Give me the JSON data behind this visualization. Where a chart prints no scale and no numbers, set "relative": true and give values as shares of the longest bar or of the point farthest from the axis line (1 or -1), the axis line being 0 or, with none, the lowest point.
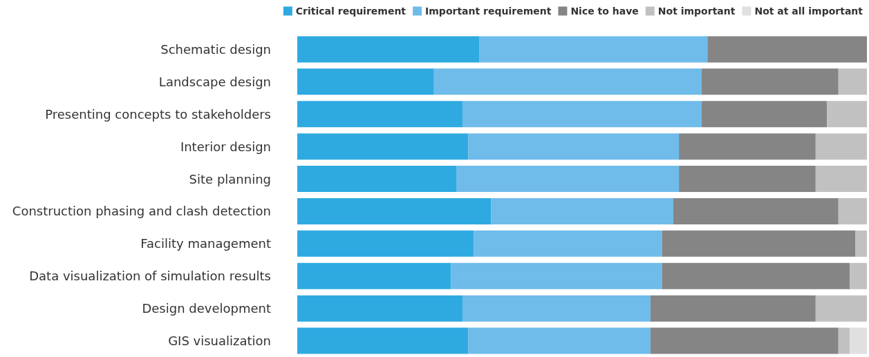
{
  "chart_data": {
    "type": "bar",
    "orientation": "horizontal",
    "stacked": true,
    "relative": true,
    "legend": "top right",
    "categories": [
      "Schematic design",
      "Landscape design",
      "Presenting concepts to stakeholders",
      "Interior design",
      "Site planning",
      "Construction phasing and clash detection",
      "Facility management",
      "Data visualization of simulation results",
      "Design development",
      "GIS visualization"
    ],
    "series": [
      {
        "name": "Critical requirement",
        "color": "#2eaae1",
        "values": [
          0.32,
          0.24,
          0.29,
          0.3,
          0.28,
          0.34,
          0.31,
          0.27,
          0.29,
          0.3
        ]
      },
      {
        "name": "Important requirement",
        "color": "#6fbbea",
        "values": [
          0.4,
          0.47,
          0.42,
          0.37,
          0.39,
          0.32,
          0.33,
          0.37,
          0.33,
          0.32
        ]
      },
      {
        "name": "Nice to have",
        "color": "#858585",
        "values": [
          0.28,
          0.24,
          0.22,
          0.24,
          0.24,
          0.29,
          0.34,
          0.33,
          0.29,
          0.33
        ]
      },
      {
        "name": "Not important",
        "color": "#c1c1c1",
        "values": [
          0,
          0.05,
          0.07,
          0.09,
          0.09,
          0.05,
          0.02,
          0.03,
          0.09,
          0.02
        ]
      },
      {
        "name": "Not at all important",
        "color": "#e0e0e0",
        "values": [
          0,
          0,
          0,
          0,
          0,
          0,
          0,
          0,
          0,
          0.03
        ]
      }
    ]
  }
}
